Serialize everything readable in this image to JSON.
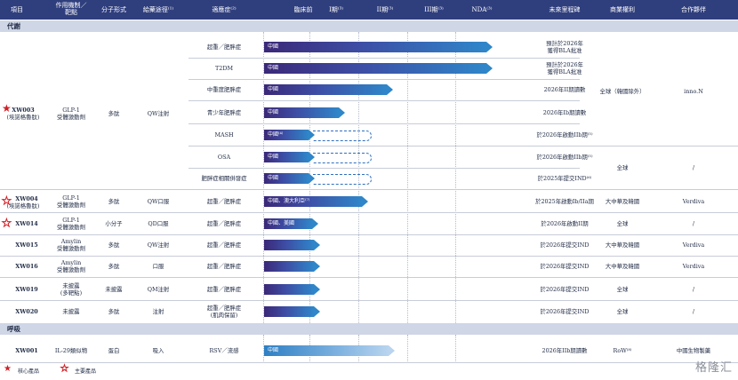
{
  "headers": {
    "project": "項目",
    "mechanism": "作用機制／\n靶點",
    "molecule": "分子形式",
    "route": "給藥途徑⁽¹⁾",
    "indication": "適應症⁽²⁾",
    "preclinical": "臨床前",
    "phase1": "I期⁽³⁾",
    "phase2": "II期⁽³⁾",
    "phase3": "III期⁽³⁾",
    "nda": "NDA⁽³⁾",
    "milestone": "未來里程碑",
    "rights": "商業權利",
    "partner": "合作夥伴"
  },
  "sections": {
    "metabolic": "代謝",
    "respiratory": "呼吸"
  },
  "xw003": {
    "name": "XW003",
    "sub": "(埃諾格魯肽)",
    "mechanism": "GLP-1\n受體激動劑",
    "molecule": "多肽",
    "route": "QW注射",
    "rights_a": "全球（韓國除外）",
    "partner_a": "inno.N",
    "rights_b": "全球",
    "partner_b": "/",
    "rows": [
      {
        "indication": "超重／肥胖症",
        "bar": "中國",
        "milestone": "預計於2026年\n獲得BLA批准"
      },
      {
        "indication": "T2DM",
        "bar": "中國",
        "milestone": "預計於2026年\n獲得BLA批准"
      },
      {
        "indication": "中重度肥胖症",
        "bar": "中國",
        "milestone": "2026年II期讀數"
      },
      {
        "indication": "青少年肥胖症",
        "bar": "中國",
        "milestone": "2026年Ib期讀數"
      },
      {
        "indication": "MASH",
        "bar": "中國⁽⁴⁾",
        "milestone": "於2026年啟動IIb期⁽⁵⁾"
      },
      {
        "indication": "OSA",
        "bar": "中國",
        "milestone": "於2026年啟動IIb期⁽⁵⁾"
      },
      {
        "indication": "肥胖症相關併發症",
        "bar": "中國",
        "milestone": "於2025年提交IND⁽⁶⁾"
      }
    ]
  },
  "others": [
    {
      "name": "XW004",
      "sub": "(埃諾格魯肽)",
      "mechanism": "GLP-1\n受體激動劑",
      "molecule": "多肽",
      "route": "QW口服",
      "indication": "超重／肥胖症",
      "bar": "中國、澳大利亞⁽⁷⁾",
      "milestone": "於2025年啟動Ib/IIa期",
      "rights": "大中華及韓國",
      "partner": "Verdiva"
    },
    {
      "name": "XW014",
      "sub": "",
      "mechanism": "GLP-1\n受體激動劑",
      "molecule": "小分子",
      "route": "QD口服",
      "indication": "超重／肥胖症",
      "bar": "中國、美國",
      "milestone": "於2026年啟動II期",
      "rights": "全球",
      "partner": "/"
    },
    {
      "name": "XW015",
      "sub": "",
      "mechanism": "Amylin\n受體激動劑",
      "molecule": "多肽",
      "route": "QW注射",
      "indication": "超重／肥胖症",
      "bar": "",
      "milestone": "於2026年提交IND",
      "rights": "大中華及韓國",
      "partner": "Verdiva"
    },
    {
      "name": "XW016",
      "sub": "",
      "mechanism": "Amylin\n受體激動劑",
      "molecule": "多肽",
      "route": "口服",
      "indication": "超重／肥胖症",
      "bar": "",
      "milestone": "於2026年提交IND",
      "rights": "大中華及韓國",
      "partner": "Verdiva"
    },
    {
      "name": "XW019",
      "sub": "",
      "mechanism": "未披露\n(多靶點)",
      "molecule": "未披露",
      "route": "QM注射",
      "indication": "超重／肥胖症",
      "bar": "",
      "milestone": "於2026年提交IND",
      "rights": "全球",
      "partner": "/"
    },
    {
      "name": "XW020",
      "sub": "",
      "mechanism": "未披露",
      "molecule": "多肽",
      "route": "注射",
      "indication": "超重／肥胖症\n(肌肉保留)",
      "bar": "",
      "milestone": "於2026年提交IND",
      "rights": "全球",
      "partner": "/"
    }
  ],
  "xw001": {
    "name": "XW001",
    "mechanism": "IL-29類似物",
    "molecule": "蛋白",
    "route": "吸入",
    "indication": "RSV／流感",
    "bar": "中國",
    "milestone": "2026年IIb期讀數",
    "rights": "RoW⁽⁸⁾",
    "partner": "中國生物製藥"
  },
  "legend": {
    "core": "核心產品",
    "key": "主要產品"
  },
  "watermark": "格隆汇",
  "colors": {
    "header": "#2f3e7d",
    "section": "#cfd6e6",
    "core_star": "#d21f26"
  }
}
